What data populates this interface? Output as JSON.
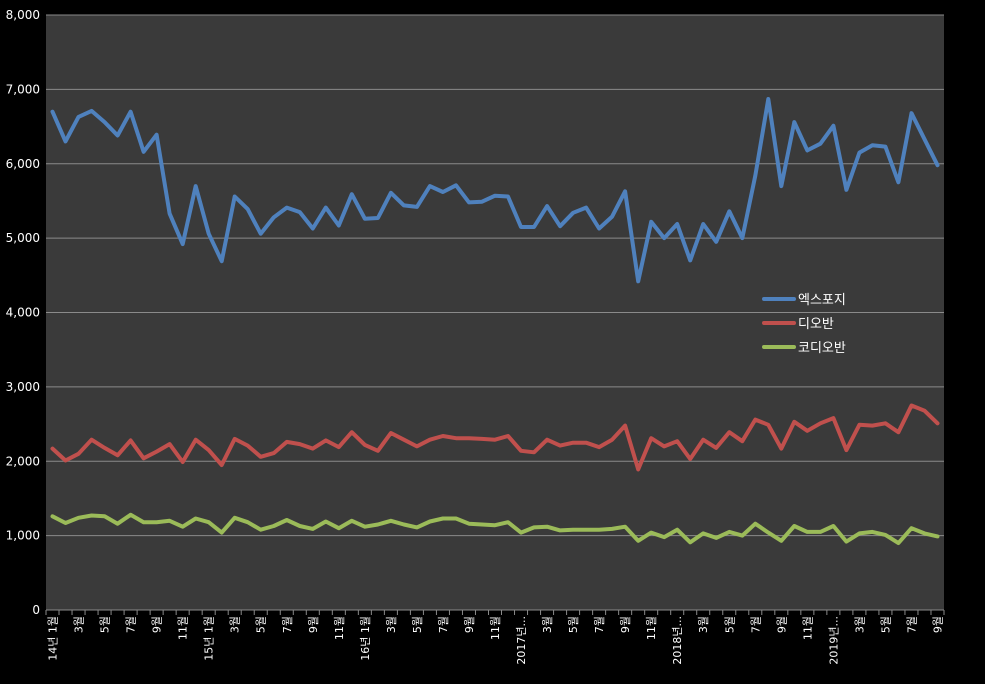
{
  "chart_data": {
    "type": "line",
    "ylim": [
      0,
      8000
    ],
    "yticks": [
      "0",
      "1,000",
      "2,000",
      "3,000",
      "4,000",
      "5,000",
      "6,000",
      "7,000",
      "8,000"
    ],
    "grid": true,
    "legend_position": "right",
    "xtick_labels": [
      "14년 1월",
      "3월",
      "5월",
      "7월",
      "9월",
      "11월",
      "15년 1월",
      "3월",
      "5월",
      "7월",
      "9월",
      "11월",
      "16년 1월",
      "3월",
      "5월",
      "7월",
      "9월",
      "11월",
      "2017년...",
      "3월",
      "5월",
      "7월",
      "9월",
      "11월",
      "2018년...",
      "3월",
      "5월",
      "7월",
      "9월",
      "11월",
      "2019년...",
      "3월",
      "5월",
      "7월",
      "9월"
    ],
    "series": [
      {
        "name": "엑스포지",
        "color": "#4f81bd",
        "values": [
          6700,
          6300,
          6630,
          6710,
          6560,
          6380,
          6700,
          6160,
          6390,
          5330,
          4920,
          5700,
          5060,
          4690,
          5560,
          5390,
          5060,
          5280,
          5410,
          5350,
          5130,
          5410,
          5170,
          5590,
          5260,
          5270,
          5610,
          5440,
          5420,
          5700,
          5620,
          5710,
          5480,
          5490,
          5570,
          5560,
          5150,
          5150,
          5430,
          5160,
          5340,
          5410,
          5130,
          5290,
          5630,
          4420,
          5220,
          5000,
          5190,
          4700,
          5190,
          4950,
          5360,
          5000,
          5840,
          6870,
          5700,
          6560,
          6180,
          6270,
          6510,
          5650,
          6150,
          6250,
          6230,
          5750,
          6680,
          6330,
          5980
        ]
      },
      {
        "name": "디오반",
        "color": "#c0504d",
        "values": [
          2170,
          2010,
          2100,
          2290,
          2180,
          2080,
          2280,
          2040,
          2130,
          2230,
          1990,
          2290,
          2150,
          1950,
          2300,
          2210,
          2060,
          2110,
          2260,
          2230,
          2170,
          2280,
          2190,
          2390,
          2220,
          2140,
          2380,
          2290,
          2200,
          2290,
          2340,
          2310,
          2310,
          2300,
          2290,
          2340,
          2140,
          2120,
          2290,
          2210,
          2250,
          2250,
          2190,
          2290,
          2480,
          1890,
          2310,
          2200,
          2270,
          2030,
          2290,
          2180,
          2390,
          2270,
          2560,
          2490,
          2170,
          2530,
          2410,
          2510,
          2580,
          2150,
          2490,
          2480,
          2510,
          2390,
          2750,
          2680,
          2510
        ]
      },
      {
        "name": "코디오반",
        "color": "#9bbb59",
        "values": [
          1260,
          1170,
          1240,
          1270,
          1260,
          1160,
          1280,
          1180,
          1180,
          1200,
          1120,
          1230,
          1180,
          1040,
          1240,
          1180,
          1080,
          1130,
          1210,
          1130,
          1090,
          1190,
          1100,
          1200,
          1120,
          1150,
          1200,
          1150,
          1110,
          1190,
          1230,
          1230,
          1160,
          1150,
          1140,
          1180,
          1040,
          1110,
          1120,
          1070,
          1080,
          1080,
          1080,
          1090,
          1120,
          930,
          1040,
          980,
          1080,
          910,
          1030,
          970,
          1050,
          1000,
          1160,
          1040,
          930,
          1130,
          1050,
          1050,
          1130,
          920,
          1030,
          1050,
          1010,
          900,
          1100,
          1030,
          990
        ]
      }
    ]
  }
}
